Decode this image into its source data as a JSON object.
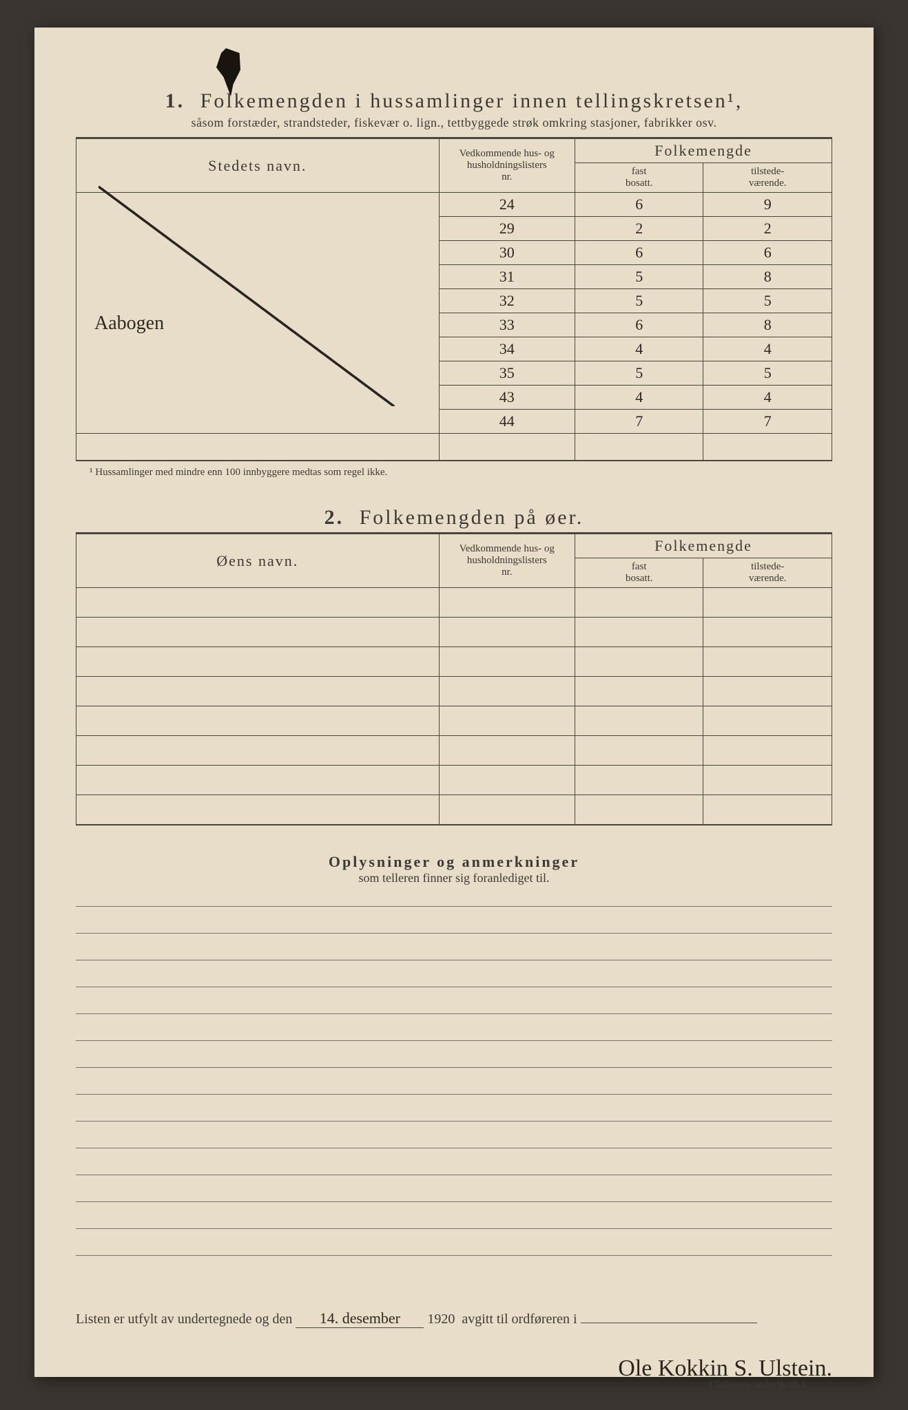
{
  "section1": {
    "number": "1.",
    "title": "Folkemengden i hussamlinger innen tellingskretsen¹,",
    "subtitle": "såsom forstæder, strandsteder, fiskevær o. lign., tettbyggede strøk omkring stasjoner, fabrikker osv.",
    "headers": {
      "name": "Stedets navn.",
      "nr_line1": "Vedkommende hus- og",
      "nr_line2": "husholdningslisters",
      "nr_line3": "nr.",
      "folk": "Folkemengde",
      "fast1": "fast",
      "fast2": "bosatt.",
      "tilst1": "tilstede-",
      "tilst2": "værende."
    },
    "place_name": "Aabogen",
    "rows": [
      {
        "nr": "24",
        "fast": "6",
        "tilst": "9"
      },
      {
        "nr": "29",
        "fast": "2",
        "tilst": "2"
      },
      {
        "nr": "30",
        "fast": "6",
        "tilst": "6"
      },
      {
        "nr": "31",
        "fast": "5",
        "tilst": "8"
      },
      {
        "nr": "32",
        "fast": "5",
        "tilst": "5"
      },
      {
        "nr": "33",
        "fast": "6",
        "tilst": "8"
      },
      {
        "nr": "34",
        "fast": "4",
        "tilst": "4"
      },
      {
        "nr": "35",
        "fast": "5",
        "tilst": "5"
      },
      {
        "nr": "43",
        "fast": "4",
        "tilst": "4"
      },
      {
        "nr": "44",
        "fast": "7",
        "tilst": "7"
      }
    ],
    "footnote": "¹  Hussamlinger med mindre enn 100 innbyggere medtas som regel ikke."
  },
  "section2": {
    "number": "2.",
    "title": "Folkemengden på øer.",
    "headers": {
      "name": "Øens navn.",
      "nr_line1": "Vedkommende hus- og",
      "nr_line2": "husholdningslisters",
      "nr_line3": "nr.",
      "folk": "Folkemengde",
      "fast1": "fast",
      "fast2": "bosatt.",
      "tilst1": "tilstede-",
      "tilst2": "værende."
    },
    "blank_rows": 8
  },
  "remarks": {
    "title": "Oplysninger og anmerkninger",
    "sub": "som telleren finner sig foranlediget til.",
    "lines": 14
  },
  "footer": {
    "pre": "Listen er utfylt av undertegnede og den",
    "date_hand": "14. desember",
    "year": "1920",
    "mid": "avgitt til ordføreren i",
    "signature": "Ole Kokkin S. Ulstein.",
    "sig_caption": "(Tellerens underskrift.)"
  },
  "style": {
    "paper_color": "#e8ddc8",
    "ink_color": "#3d3a35",
    "hand_color": "#2b2720",
    "border_color": "#4a453d",
    "rule_color": "#7a7364"
  }
}
